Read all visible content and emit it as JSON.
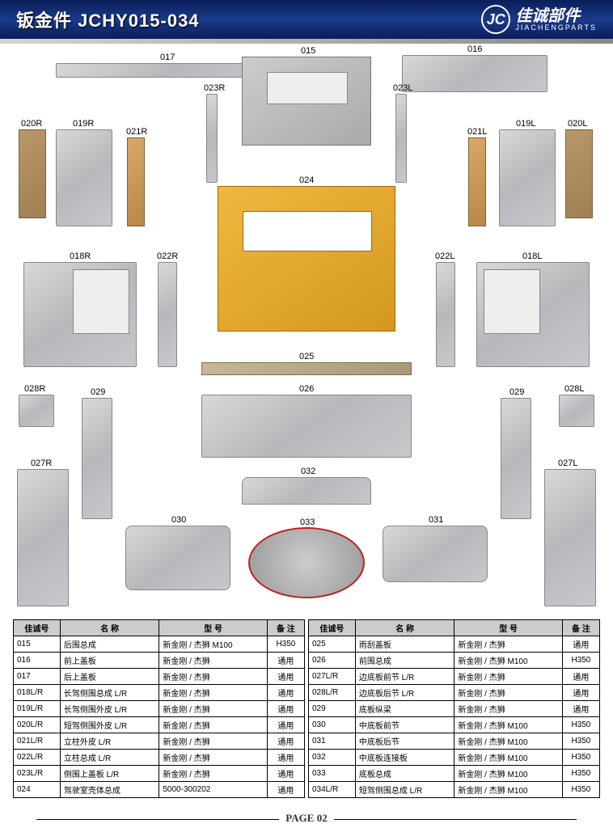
{
  "header": {
    "title": "钣金件  JCHY015-034",
    "brand_cn": "佳诚部件",
    "brand_en": "JIACHENGPARTS",
    "logo_text": "JC"
  },
  "colors": {
    "header_bg": "#0a1e5a",
    "metal": "#c8c8cc",
    "bronze": "#b89868",
    "cab_yellow": "#d49820",
    "highlight_red": "#c02020"
  },
  "parts": {
    "p015": "015",
    "p016": "016",
    "p017": "017",
    "p018R": "018R",
    "p018L": "018L",
    "p019R": "019R",
    "p019L": "019L",
    "p020R": "020R",
    "p020L": "020L",
    "p021R": "021R",
    "p021L": "021L",
    "p022R": "022R",
    "p022L": "022L",
    "p023R": "023R",
    "p023L": "023L",
    "p024": "024",
    "p025": "025",
    "p026": "026",
    "p027R": "027R",
    "p027L": "027L",
    "p028R": "028R",
    "p028L": "028L",
    "p029": "029",
    "p030": "030",
    "p031": "031",
    "p032": "032",
    "p033": "033"
  },
  "table_headers": {
    "col1": "佳诚号",
    "col2": "名 称",
    "col3": "型 号",
    "col4": "备 注"
  },
  "left_rows": [
    {
      "id": "015",
      "name": "后围总成",
      "model": "新金刚 / 杰狮 M100",
      "note": "H350"
    },
    {
      "id": "016",
      "name": "前上盖板",
      "model": "新金刚 / 杰狮",
      "note": "通用"
    },
    {
      "id": "017",
      "name": "后上盖板",
      "model": "新金刚 / 杰狮",
      "note": "通用"
    },
    {
      "id": "018L/R",
      "name": "长驾侧围总成 L/R",
      "model": "新金刚 / 杰狮",
      "note": "通用"
    },
    {
      "id": "019L/R",
      "name": "长驾侧围外皮 L/R",
      "model": "新金刚 / 杰狮",
      "note": "通用"
    },
    {
      "id": "020L/R",
      "name": "短驾侧围外皮 L/R",
      "model": "新金刚 / 杰狮",
      "note": "通用"
    },
    {
      "id": "021L/R",
      "name": "立柱外皮 L/R",
      "model": "新金刚 / 杰狮",
      "note": "通用"
    },
    {
      "id": "022L/R",
      "name": "立柱总成 L/R",
      "model": "新金刚 / 杰狮",
      "note": "通用"
    },
    {
      "id": "023L/R",
      "name": "侧围上盖板 L/R",
      "model": "新金刚 / 杰狮",
      "note": "通用"
    },
    {
      "id": "024",
      "name": "驾驶室壳体总成",
      "model": "5000-300202",
      "note": "通用"
    }
  ],
  "right_rows": [
    {
      "id": "025",
      "name": "雨刮盖板",
      "model": "新金刚 / 杰狮",
      "note": "通用"
    },
    {
      "id": "026",
      "name": "前围总成",
      "model": "新金刚 / 杰狮 M100",
      "note": "H350"
    },
    {
      "id": "027L/R",
      "name": "边底板前节 L/R",
      "model": "新金刚 / 杰狮",
      "note": "通用"
    },
    {
      "id": "028L/R",
      "name": "边底板后节 L/R",
      "model": "新金刚 / 杰狮",
      "note": "通用"
    },
    {
      "id": "029",
      "name": "底板纵梁",
      "model": "新金刚 / 杰狮",
      "note": "通用"
    },
    {
      "id": "030",
      "name": "中底板前节",
      "model": "新金刚 / 杰狮 M100",
      "note": "H350"
    },
    {
      "id": "031",
      "name": "中底板后节",
      "model": "新金刚 / 杰狮 M100",
      "note": "H350"
    },
    {
      "id": "032",
      "name": "中底板连接板",
      "model": "新金刚 / 杰狮 M100",
      "note": "H350"
    },
    {
      "id": "033",
      "name": "底板总成",
      "model": "新金刚 / 杰狮 M100",
      "note": "H350"
    },
    {
      "id": "034L/R",
      "name": "短驾侧围总成 L/R",
      "model": "新金刚 / 杰狮 M100",
      "note": "H350"
    }
  ],
  "footer": "PAGE 02"
}
